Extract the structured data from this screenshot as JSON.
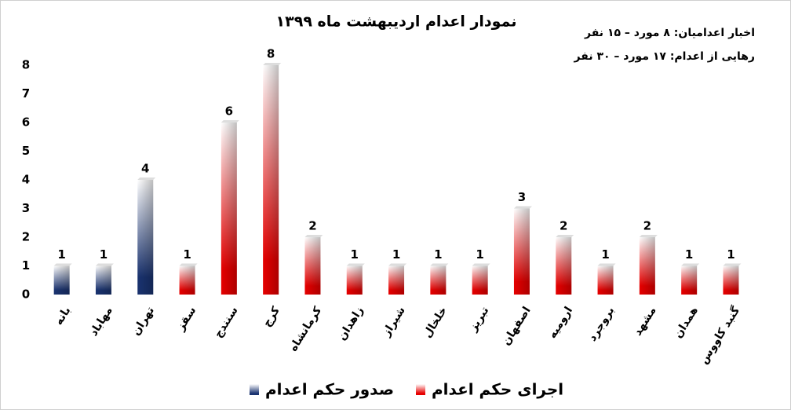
{
  "chart_data": {
    "type": "bar",
    "title": "نمودار اعدام اردیبهشت ماه ۱۳۹۹",
    "annotations": [
      "اخبار اعدامیان: ۸ مورد – ۱۵ نفر",
      "رهایی از اعدام: ۱۷ مورد – ۳۰ نفر"
    ],
    "categories": [
      "بانه",
      "مهاباد",
      "تهران",
      "سقز",
      "سنندج",
      "کرج",
      "کرمانشاه",
      "زاهدان",
      "شیراز",
      "خلخال",
      "تبریز",
      "اصفهان",
      "ارومیه",
      "بروجرد",
      "مشهد",
      "همدان",
      "گنبد کاووس"
    ],
    "series": [
      {
        "name": "صدور حکم اعدام",
        "color": "#1a3370",
        "values": [
          1,
          1,
          4,
          null,
          null,
          null,
          null,
          null,
          null,
          null,
          null,
          null,
          null,
          null,
          null,
          null,
          null
        ]
      },
      {
        "name": "اجرای حکم اعدام",
        "color": "#e60000",
        "values": [
          null,
          null,
          null,
          1,
          6,
          8,
          2,
          1,
          1,
          1,
          1,
          3,
          2,
          1,
          2,
          1,
          1
        ]
      }
    ],
    "ylim": [
      0,
      8
    ],
    "yticks": [
      0,
      1,
      2,
      3,
      4,
      5,
      6,
      7,
      8
    ],
    "grid": false,
    "legend": "bottom"
  }
}
